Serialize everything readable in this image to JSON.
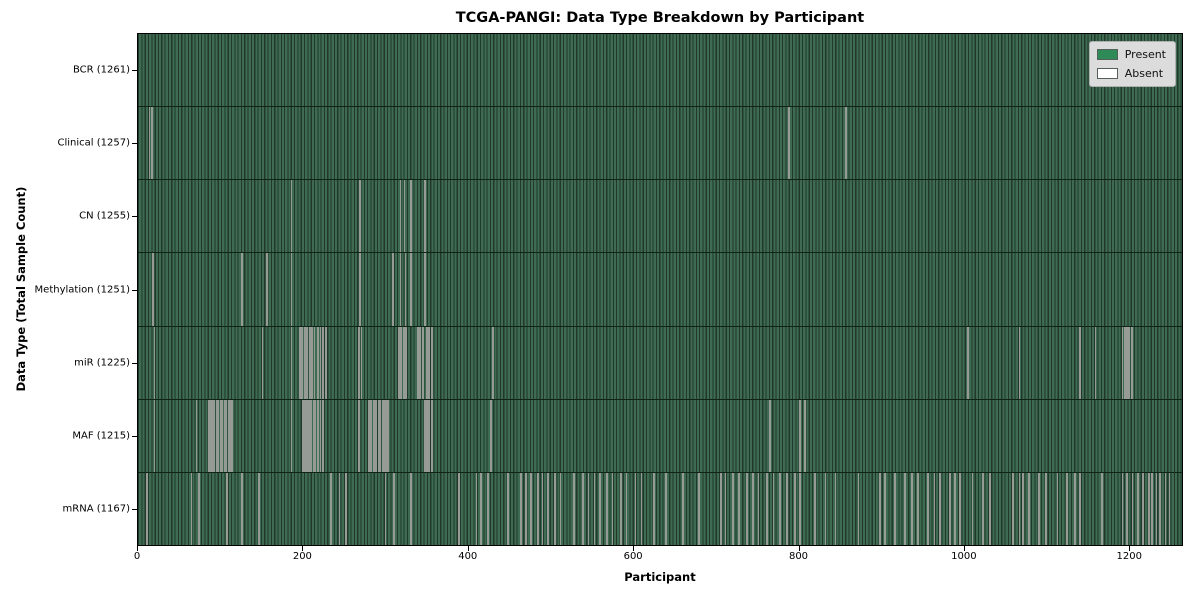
{
  "chart_data": {
    "type": "heatmap",
    "subtype": "presence-absence-barcode",
    "title": "TCGA-PANGI: Data Type Breakdown by Participant",
    "xlabel": "Participant",
    "ylabel": "Data Type (Total Sample Count)",
    "xlim": [
      0,
      1265
    ],
    "xticks": [
      0,
      200,
      400,
      600,
      800,
      1000,
      1200
    ],
    "grid": false,
    "legend": {
      "position": "upper right",
      "entries": [
        {
          "label": "Present",
          "color": "#2e8b57"
        },
        {
          "label": "Absent",
          "color": "#ffffff"
        }
      ]
    },
    "colors": {
      "present_fill": "#3e6b52",
      "bar_edge": "#20392a",
      "absent_line": "#969b96",
      "row_divider": "#0f2416",
      "spine": "#000000",
      "legend_bg": "#dcdcdc",
      "legend_border": "#b0b0b0",
      "background": "#ffffff"
    },
    "rows": [
      {
        "label": "BCR (1261)",
        "data_type": "BCR",
        "total_samples": 1261,
        "absent_participants": []
      },
      {
        "label": "Clinical (1257)",
        "data_type": "Clinical",
        "total_samples": 1257,
        "absent_participants": [
          14,
          17,
          789,
          858
        ]
      },
      {
        "label": "CN (1255)",
        "data_type": "CN",
        "total_samples": 1255,
        "absent_participants": [
          186,
          269,
          318,
          323,
          331,
          348
        ]
      },
      {
        "label": "Methylation (1251)",
        "data_type": "Methylation",
        "total_samples": 1251,
        "absent_participants": [
          18,
          126,
          156,
          186,
          269,
          309,
          318,
          324,
          331,
          348
        ]
      },
      {
        "label": "miR (1225)",
        "data_type": "miR",
        "total_samples": 1225,
        "absent_participants": [
          20,
          151,
          186,
          196,
          199,
          202,
          205,
          208,
          211,
          214,
          218,
          221,
          224,
          228,
          268,
          271,
          316,
          319,
          322,
          325,
          339,
          342,
          345,
          350,
          353,
          356,
          430,
          1006,
          1068,
          1141,
          1160,
          1193,
          1196,
          1198,
          1201,
          1204
        ]
      },
      {
        "label": "MAF (1215)",
        "data_type": "MAF",
        "total_samples": 1215,
        "absent_participants": [
          20,
          71,
          86,
          88,
          90,
          92,
          95,
          97,
          100,
          102,
          105,
          107,
          110,
          112,
          114,
          186,
          200,
          202,
          204,
          206,
          208,
          210,
          213,
          215,
          218,
          221,
          224,
          268,
          280,
          282,
          286,
          288,
          292,
          294,
          297,
          299,
          301,
          303,
          348,
          350,
          353,
          356,
          428,
          766,
          802,
          808
        ]
      },
      {
        "label": "mRNA (1167)",
        "data_type": "mRNA",
        "total_samples": 1167,
        "absent_participants": [
          11,
          65,
          74,
          108,
          126,
          147,
          234,
          244,
          252,
          300,
          310,
          331,
          389,
          410,
          416,
          424,
          448,
          464,
          470,
          476,
          485,
          490,
          497,
          505,
          512,
          528,
          539,
          546,
          553,
          560,
          568,
          575,
          585,
          592,
          603,
          610,
          625,
          640,
          660,
          680,
          706,
          712,
          721,
          728,
          738,
          745,
          752,
          762,
          770,
          778,
          786,
          796,
          802,
          820,
          833,
          845,
          873,
          899,
          905,
          917,
          929,
          938,
          945,
          957,
          965,
          972,
          984,
          990,
          996,
          1011,
          1024,
          1032,
          1060,
          1068,
          1072,
          1080,
          1092,
          1100,
          1114,
          1126,
          1135,
          1141,
          1168,
          1193,
          1198,
          1205,
          1212,
          1218,
          1225,
          1229,
          1234,
          1238,
          1245,
          1250
        ]
      }
    ]
  }
}
